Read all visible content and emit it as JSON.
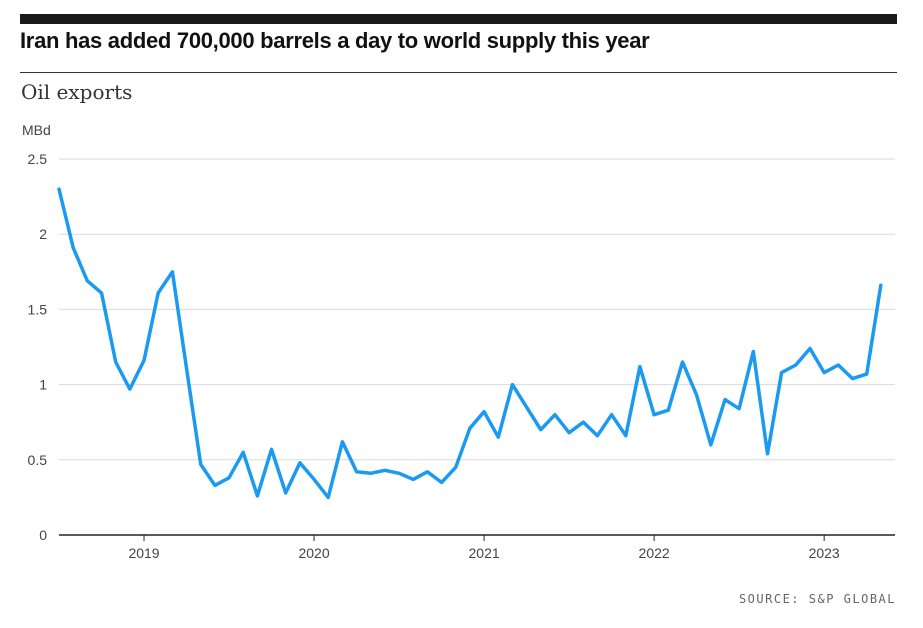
{
  "header": {
    "title": "Iran has added 700,000 barrels a day to world supply this year",
    "subtitle": "Oil exports"
  },
  "footer": {
    "source": "SOURCE: S&P GLOBAL"
  },
  "colors": {
    "line": "#1a9af0",
    "grid": "#d9d9d9",
    "axis": "#222222",
    "text": "#444444"
  },
  "chart_data": {
    "type": "line",
    "title": "Iran has added 700,000 barrels a day to world supply this year",
    "subtitle": "Oil exports",
    "ylabel": "MBd",
    "xlabel": "",
    "ylim": [
      0,
      2.5
    ],
    "yticks": [
      0,
      0.5,
      1,
      1.5,
      2,
      2.5
    ],
    "ytick_labels": [
      "0",
      "0.5",
      "1",
      "1.5",
      "2",
      "2.5"
    ],
    "xticks": [
      "2019-01",
      "2020-01",
      "2021-01",
      "2022-01",
      "2023-01"
    ],
    "xtick_labels": [
      "2019",
      "2020",
      "2021",
      "2022",
      "2023"
    ],
    "xlim": [
      "2018-07",
      "2023-06"
    ],
    "grid": true,
    "series": [
      {
        "x": [
          "2018-07",
          "2018-08",
          "2018-09",
          "2018-10",
          "2018-11",
          "2018-12",
          "2019-01",
          "2019-02",
          "2019-03",
          "2019-04",
          "2019-05",
          "2019-06",
          "2019-07",
          "2019-08",
          "2019-09",
          "2019-10",
          "2019-11",
          "2019-12",
          "2020-01",
          "2020-02",
          "2020-03",
          "2020-04",
          "2020-05",
          "2020-06",
          "2020-07",
          "2020-08",
          "2020-09",
          "2020-10",
          "2020-11",
          "2020-12",
          "2021-01",
          "2021-02",
          "2021-03",
          "2021-04",
          "2021-05",
          "2021-06",
          "2021-07",
          "2021-08",
          "2021-09",
          "2021-10",
          "2021-11",
          "2021-12",
          "2022-01",
          "2022-02",
          "2022-03",
          "2022-04",
          "2022-05",
          "2022-06",
          "2022-07",
          "2022-08",
          "2022-09",
          "2022-10",
          "2022-11",
          "2022-12",
          "2023-01",
          "2023-02",
          "2023-03",
          "2023-04",
          "2023-05"
        ],
        "values": [
          2.3,
          1.91,
          1.69,
          1.61,
          1.15,
          0.97,
          1.16,
          1.61,
          1.75,
          1.11,
          0.47,
          0.33,
          0.38,
          0.55,
          0.26,
          0.57,
          0.28,
          0.48,
          0.37,
          0.25,
          0.62,
          0.42,
          0.41,
          0.43,
          0.41,
          0.37,
          0.42,
          0.35,
          0.45,
          0.71,
          0.82,
          0.65,
          1.0,
          0.85,
          0.7,
          0.8,
          0.68,
          0.75,
          0.66,
          0.8,
          0.66,
          1.12,
          0.8,
          0.83,
          1.15,
          0.93,
          0.6,
          0.9,
          0.84,
          1.22,
          0.54,
          1.08,
          1.13,
          1.24,
          1.08,
          1.13,
          1.04,
          1.07,
          1.66
        ]
      }
    ]
  }
}
